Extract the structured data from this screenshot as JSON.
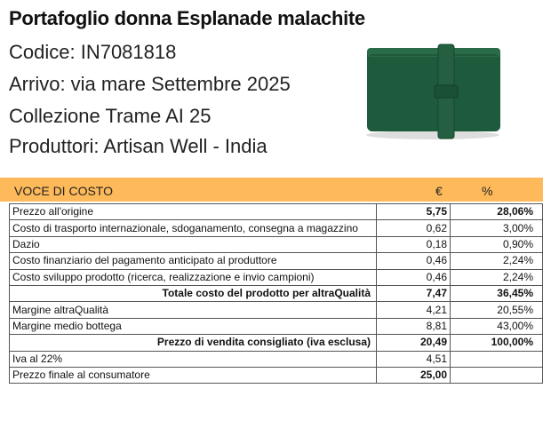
{
  "header": {
    "title": "Portafoglio donna Esplanade malachite",
    "code": "Codice:   IN7081818",
    "arrival": "Arrivo: via mare Settembre 2025",
    "collection": "Collezione Trame AI 25",
    "producers": "Produttori: Artisan Well - India"
  },
  "product_image": {
    "icon": "green-wallet-image",
    "color": "#1E5A3C"
  },
  "table": {
    "header_color": "#FDB95A",
    "columns": [
      "VOCE DI COSTO",
      "€",
      "%"
    ],
    "rows": [
      {
        "label": "Prezzo all'origine",
        "eur": "5,75",
        "pct": "28,06%",
        "bold_values": true
      },
      {
        "label": "Costo di trasporto internazionale, sdoganamento, consegna a magazzino",
        "eur": "0,62",
        "pct": "3,00%"
      },
      {
        "label": "Dazio",
        "eur": "0,18",
        "pct": "0,90%"
      },
      {
        "label": "Costo finanziario del pagamento anticipato al produttore",
        "eur": "0,46",
        "pct": "2,24%"
      },
      {
        "label": "Costo sviluppo prodotto (ricerca, realizzazione e invio campioni)",
        "eur": "0,46",
        "pct": "2,24%"
      },
      {
        "label": "Totale costo del prodotto per altraQualità",
        "eur": "7,47",
        "pct": "36,45%",
        "total": true
      },
      {
        "label": "Margine altraQualità",
        "eur": "4,21",
        "pct": "20,55%"
      },
      {
        "label": "Margine medio bottega",
        "eur": "8,81",
        "pct": "43,00%"
      },
      {
        "label": "Prezzo di vendita consigliato (iva esclusa)",
        "eur": "20,49",
        "pct": "100,00%",
        "total": true
      },
      {
        "label": "Iva al 22%",
        "eur": "4,51",
        "pct": ""
      },
      {
        "label": "Prezzo finale al consumatore",
        "eur": "25,00",
        "pct": "",
        "bold_values": true
      }
    ]
  }
}
